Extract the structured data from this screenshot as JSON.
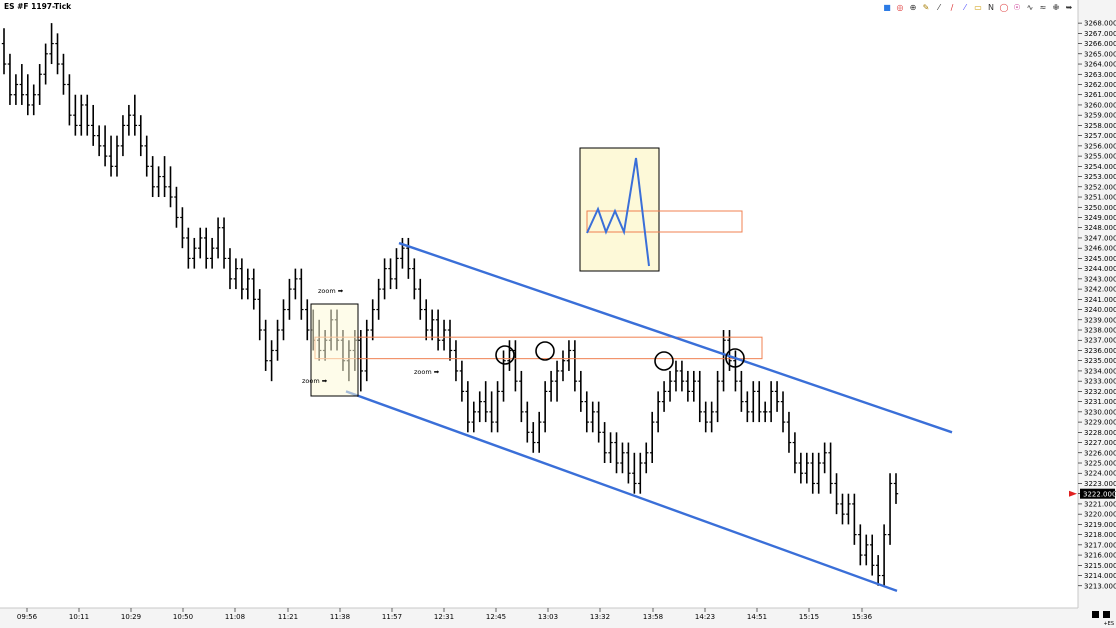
{
  "window": {
    "title": "ES #F 1197-Tick"
  },
  "toolbar": {
    "icons": [
      "candles-icon",
      "target-icon",
      "crosshair-icon",
      "pencil-icon",
      "line-icon",
      "ray-icon",
      "channel-icon",
      "rectangle-icon",
      "n-icon",
      "ellipse-icon",
      "globe-icon",
      "zigzag-icon",
      "curve-icon",
      "marker-icon",
      "pointer-icon"
    ],
    "n_label": "N"
  },
  "corner_label": "+ES",
  "chart_data": {
    "type": "ohlc",
    "title": "ES #F 1197-Tick",
    "ylim": [
      3212,
      3268.5
    ],
    "yticks": [
      3213,
      3214,
      3215,
      3216,
      3217,
      3218,
      3219,
      3220,
      3221,
      3222,
      3223,
      3224,
      3225,
      3226,
      3227,
      3228,
      3229,
      3230,
      3231,
      3232,
      3233,
      3234,
      3235,
      3236,
      3237,
      3238,
      3239,
      3240,
      3241,
      3242,
      3243,
      3244,
      3245,
      3246,
      3247,
      3248,
      3249,
      3250,
      3251,
      3252,
      3253,
      3254,
      3255,
      3256,
      3257,
      3258,
      3259,
      3260,
      3261,
      3262,
      3263,
      3264,
      3265,
      3266,
      3267,
      3268
    ],
    "ytick_labels": [
      "3213.000",
      "3214.000",
      "3215.000",
      "3216.000",
      "3217.000",
      "3218.000",
      "3219.000",
      "3220.000",
      "3221.000",
      "3222.000",
      "3223.000",
      "3224.000",
      "3225.000",
      "3226.000",
      "3227.000",
      "3228.000",
      "3229.000",
      "3230.000",
      "3231.000",
      "3232.000",
      "3233.000",
      "3234.000",
      "3235.000",
      "3236.000",
      "3237.000",
      "3238.000",
      "3239.000",
      "3240.000",
      "3241.000",
      "3242.000",
      "3243.000",
      "3244.000",
      "3245.000",
      "3246.000",
      "3247.000",
      "3248.000",
      "3249.000",
      "3250.000",
      "3251.000",
      "3252.000",
      "3253.000",
      "3254.000",
      "3255.000",
      "3256.000",
      "3257.000",
      "3258.000",
      "3259.000",
      "3260.000",
      "3261.000",
      "3262.000",
      "3263.000",
      "3264.000",
      "3265.000",
      "3266.000",
      "3267.000",
      "3268.000"
    ],
    "xticks": [
      "09:56",
      "10:11",
      "10:29",
      "10:50",
      "11:08",
      "11:21",
      "11:38",
      "11:57",
      "12:31",
      "12:45",
      "13:03",
      "13:32",
      "13:58",
      "14:23",
      "14:51",
      "15:15",
      "15:36"
    ],
    "last_price": "3222.000",
    "last_price_value": 3222,
    "bars": [
      [
        3266,
        3267.5,
        3263,
        3264
      ],
      [
        3264,
        3265,
        3260,
        3261
      ],
      [
        3261,
        3263,
        3260,
        3262
      ],
      [
        3262,
        3264,
        3260,
        3261
      ],
      [
        3261,
        3263,
        3259,
        3260
      ],
      [
        3260,
        3262,
        3259,
        3261
      ],
      [
        3261,
        3264,
        3260,
        3263
      ],
      [
        3263,
        3266,
        3262,
        3265
      ],
      [
        3265,
        3268,
        3264,
        3266
      ],
      [
        3266,
        3267,
        3263,
        3264
      ],
      [
        3264,
        3265,
        3261,
        3262
      ],
      [
        3262,
        3263,
        3258,
        3259
      ],
      [
        3259,
        3261,
        3257,
        3258
      ],
      [
        3258,
        3261,
        3257,
        3260
      ],
      [
        3260,
        3261,
        3257,
        3258
      ],
      [
        3258,
        3260,
        3256,
        3257
      ],
      [
        3257,
        3258,
        3255,
        3256
      ],
      [
        3256,
        3258,
        3254,
        3255
      ],
      [
        3255,
        3257,
        3253,
        3254
      ],
      [
        3254,
        3257,
        3253,
        3256
      ],
      [
        3256,
        3259,
        3255,
        3258
      ],
      [
        3258,
        3260,
        3257,
        3259
      ],
      [
        3259,
        3261,
        3257,
        3258
      ],
      [
        3258,
        3259,
        3255,
        3256
      ],
      [
        3256,
        3257,
        3253,
        3254
      ],
      [
        3254,
        3255,
        3251,
        3252
      ],
      [
        3252,
        3254,
        3251,
        3253
      ],
      [
        3253,
        3255,
        3251,
        3252
      ],
      [
        3252,
        3254,
        3250,
        3251
      ],
      [
        3251,
        3252,
        3248,
        3249
      ],
      [
        3249,
        3250,
        3246,
        3247
      ],
      [
        3247,
        3248,
        3244,
        3245
      ],
      [
        3245,
        3247,
        3244,
        3246
      ],
      [
        3246,
        3248,
        3245,
        3247
      ],
      [
        3247,
        3248,
        3244,
        3245
      ],
      [
        3245,
        3247,
        3244,
        3246
      ],
      [
        3246,
        3249,
        3245,
        3248
      ],
      [
        3248,
        3249,
        3244,
        3245
      ],
      [
        3245,
        3246,
        3242,
        3243
      ],
      [
        3243,
        3245,
        3242,
        3244
      ],
      [
        3244,
        3245,
        3241,
        3242
      ],
      [
        3242,
        3244,
        3241,
        3243
      ],
      [
        3243,
        3244,
        3240,
        3241
      ],
      [
        3241,
        3242,
        3237,
        3238
      ],
      [
        3238,
        3239,
        3234,
        3235
      ],
      [
        3235,
        3237,
        3233,
        3236
      ],
      [
        3236,
        3239,
        3235,
        3238
      ],
      [
        3238,
        3241,
        3237,
        3240
      ],
      [
        3240,
        3243,
        3239,
        3242
      ],
      [
        3242,
        3244,
        3241,
        3243
      ],
      [
        3243,
        3244,
        3239,
        3240
      ],
      [
        3240,
        3241,
        3237,
        3238
      ],
      [
        3238,
        3240,
        3236,
        3237
      ],
      [
        3237,
        3239,
        3235,
        3236
      ],
      [
        3236,
        3238,
        3235,
        3237
      ],
      [
        3237,
        3240,
        3236,
        3239
      ],
      [
        3239,
        3240,
        3236,
        3237
      ],
      [
        3237,
        3238,
        3234,
        3235
      ],
      [
        3235,
        3237,
        3233,
        3236
      ],
      [
        3236,
        3238,
        3234,
        3237
      ],
      [
        3237,
        3238,
        3232,
        3234
      ],
      [
        3234,
        3239,
        3233,
        3238
      ],
      [
        3238,
        3241,
        3237,
        3240
      ],
      [
        3240,
        3243,
        3239,
        3242
      ],
      [
        3242,
        3245,
        3241,
        3244
      ],
      [
        3244,
        3245,
        3242,
        3243
      ],
      [
        3243,
        3246,
        3242,
        3245
      ],
      [
        3245,
        3247,
        3244,
        3246
      ],
      [
        3246,
        3247,
        3243,
        3244
      ],
      [
        3244,
        3245,
        3241,
        3242
      ],
      [
        3242,
        3243,
        3239,
        3240
      ],
      [
        3240,
        3241,
        3237,
        3238
      ],
      [
        3238,
        3240,
        3237,
        3239
      ],
      [
        3239,
        3240,
        3236,
        3237
      ],
      [
        3237,
        3239,
        3236,
        3238
      ],
      [
        3238,
        3239,
        3235,
        3236
      ],
      [
        3236,
        3237,
        3233,
        3234
      ],
      [
        3234,
        3235,
        3231,
        3232
      ],
      [
        3232,
        3233,
        3228,
        3229
      ],
      [
        3229,
        3231,
        3228,
        3230
      ],
      [
        3230,
        3232,
        3229,
        3231
      ],
      [
        3231,
        3233,
        3229,
        3230
      ],
      [
        3230,
        3232,
        3228,
        3229
      ],
      [
        3229,
        3233,
        3228,
        3232
      ],
      [
        3232,
        3236,
        3231,
        3235
      ],
      [
        3235,
        3237,
        3234,
        3236
      ],
      [
        3236,
        3237,
        3232,
        3233
      ],
      [
        3233,
        3234,
        3229,
        3230
      ],
      [
        3230,
        3231,
        3227,
        3228
      ],
      [
        3228,
        3229,
        3226,
        3227
      ],
      [
        3227,
        3230,
        3226,
        3229
      ],
      [
        3229,
        3233,
        3228,
        3232
      ],
      [
        3232,
        3234,
        3231,
        3233
      ],
      [
        3233,
        3235,
        3231,
        3234
      ],
      [
        3234,
        3236,
        3233,
        3235
      ],
      [
        3235,
        3237,
        3234,
        3236
      ],
      [
        3236,
        3237,
        3232,
        3233
      ],
      [
        3233,
        3234,
        3230,
        3231
      ],
      [
        3231,
        3232,
        3228,
        3229
      ],
      [
        3229,
        3231,
        3228,
        3230
      ],
      [
        3230,
        3231,
        3227,
        3228
      ],
      [
        3228,
        3229,
        3225,
        3226
      ],
      [
        3226,
        3228,
        3225,
        3227
      ],
      [
        3227,
        3228,
        3224,
        3225
      ],
      [
        3225,
        3227,
        3224,
        3226
      ],
      [
        3226,
        3227,
        3223,
        3224
      ],
      [
        3224,
        3226,
        3222,
        3223
      ],
      [
        3223,
        3226,
        3222,
        3225
      ],
      [
        3225,
        3227,
        3224,
        3226
      ],
      [
        3226,
        3230,
        3225,
        3229
      ],
      [
        3229,
        3232,
        3228,
        3231
      ],
      [
        3231,
        3233,
        3230,
        3232
      ],
      [
        3232,
        3234,
        3231,
        3233
      ],
      [
        3233,
        3235,
        3232,
        3234
      ],
      [
        3234,
        3235,
        3232,
        3233
      ],
      [
        3233,
        3234,
        3231,
        3232
      ],
      [
        3232,
        3234,
        3231,
        3233
      ],
      [
        3233,
        3234,
        3229,
        3230
      ],
      [
        3230,
        3231,
        3228,
        3229
      ],
      [
        3229,
        3231,
        3228,
        3230
      ],
      [
        3230,
        3234,
        3229,
        3233
      ],
      [
        3233,
        3238,
        3232,
        3237
      ],
      [
        3237,
        3238,
        3234,
        3235
      ],
      [
        3235,
        3236,
        3232,
        3233
      ],
      [
        3233,
        3234,
        3230,
        3231
      ],
      [
        3231,
        3232,
        3229,
        3230
      ],
      [
        3230,
        3233,
        3229,
        3232
      ],
      [
        3232,
        3233,
        3229,
        3230
      ],
      [
        3230,
        3231,
        3229,
        3230
      ],
      [
        3230,
        3233,
        3229,
        3232
      ],
      [
        3232,
        3233,
        3230,
        3231
      ],
      [
        3231,
        3232,
        3228,
        3229
      ],
      [
        3229,
        3230,
        3226,
        3227
      ],
      [
        3227,
        3228,
        3224,
        3225
      ],
      [
        3225,
        3226,
        3223,
        3224
      ],
      [
        3224,
        3226,
        3223,
        3225
      ],
      [
        3225,
        3226,
        3222,
        3223
      ],
      [
        3223,
        3226,
        3222,
        3225
      ],
      [
        3225,
        3227,
        3224,
        3226
      ],
      [
        3226,
        3227,
        3222,
        3223
      ],
      [
        3223,
        3224,
        3220,
        3221
      ],
      [
        3221,
        3222,
        3219,
        3220
      ],
      [
        3220,
        3222,
        3219,
        3221
      ],
      [
        3221,
        3222,
        3217,
        3218
      ],
      [
        3218,
        3219,
        3215,
        3216
      ],
      [
        3216,
        3218,
        3215,
        3217
      ],
      [
        3217,
        3218,
        3214,
        3215
      ],
      [
        3215,
        3216,
        3213,
        3214
      ],
      [
        3214,
        3219,
        3213,
        3218
      ],
      [
        3218,
        3224,
        3217,
        3223
      ],
      [
        3223,
        3224,
        3221,
        3222
      ]
    ],
    "annotations": [
      {
        "kind": "text",
        "label": "zoom ➡",
        "anchor": "upper-left box"
      },
      {
        "kind": "text",
        "label": "zoom ➡",
        "anchor": "lower-left box"
      },
      {
        "kind": "text",
        "label": "zoom ➡",
        "anchor": "middle"
      }
    ],
    "channel": {
      "color": "#3a6fd8",
      "upper": [
        [
          3246.5,
          "11:57"
        ],
        [
          3228,
          "end"
        ]
      ],
      "lower": [
        [
          3232,
          "11:38"
        ],
        [
          3212.5,
          "15:36"
        ]
      ]
    },
    "resistance_zone": {
      "color": "#f08050",
      "from": 3235.2,
      "to": 3237.3
    },
    "circle_markers": 4,
    "colors": {
      "bars": "#000000",
      "channel": "#3a6fd8",
      "zone": "#f08050",
      "zoom_box": "#fdf9d8",
      "last_price_arrow": "#e02020"
    }
  }
}
